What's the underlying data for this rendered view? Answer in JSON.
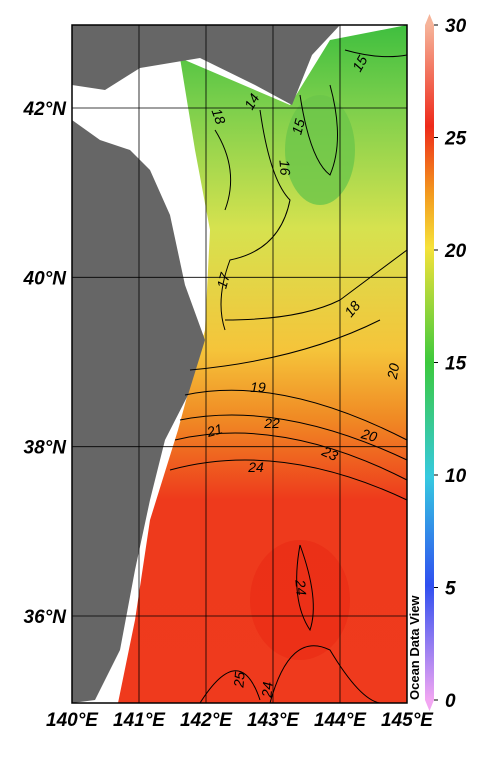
{
  "map": {
    "lon_ticks": [
      {
        "value": 140,
        "label": "140°E"
      },
      {
        "value": 141,
        "label": "141°E"
      },
      {
        "value": 142,
        "label": "142°E"
      },
      {
        "value": 143,
        "label": "143°E"
      },
      {
        "value": 144,
        "label": "144°E"
      },
      {
        "value": 145,
        "label": "145°E"
      }
    ],
    "lat_ticks": [
      {
        "value": 36,
        "label": "36°N"
      },
      {
        "value": 38,
        "label": "38°N"
      },
      {
        "value": 40,
        "label": "40°N"
      },
      {
        "value": 42,
        "label": "42°N"
      }
    ],
    "colorbar": {
      "ticks": [
        0,
        5,
        10,
        15,
        20,
        25,
        30
      ]
    },
    "contour_labels": [
      "15",
      "15",
      "14",
      "18",
      "16",
      "17",
      "18",
      "20",
      "19",
      "21",
      "22",
      "20",
      "23",
      "24",
      "24",
      "25",
      "24"
    ],
    "watermark": "Ocean Data View"
  }
}
